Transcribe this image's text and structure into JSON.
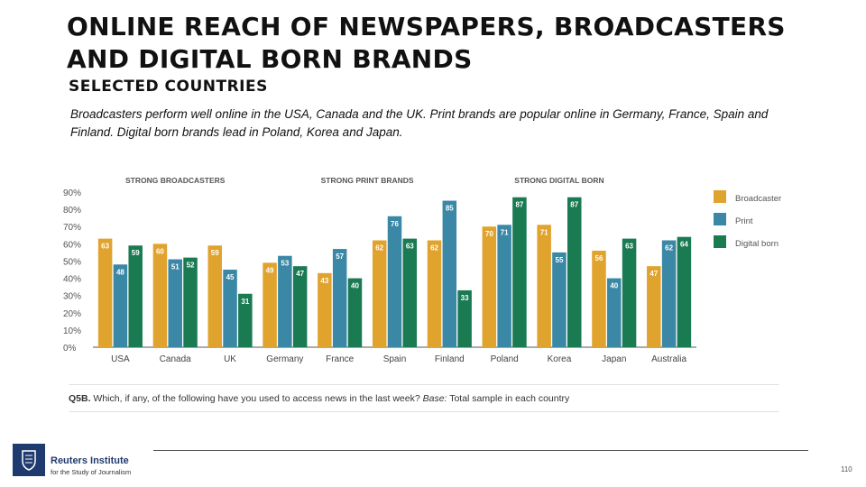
{
  "slide": {
    "title": "ONLINE REACH OF NEWSPAPERS, BROADCASTERS AND DIGITAL BORN BRANDS",
    "subtitle": "SELECTED COUNTRIES",
    "description": "Broadcasters perform well online in the USA, Canada and the UK. Print brands are popular online in Germany, France, Spain and Finland. Digital born brands lead in Poland, Korea and Japan.",
    "question_code": "Q5B.",
    "question_text": " Which, if any, of the following have you used to access news in the last week? ",
    "base_label": "Base:",
    "base_text": " Total sample in each country",
    "logo_name": "Reuters Institute",
    "logo_sub": "for the Study of Journalism",
    "page_number": "110"
  },
  "chart_data": {
    "type": "bar",
    "categories": [
      "USA",
      "Canada",
      "UK",
      "Germany",
      "France",
      "Spain",
      "Finland",
      "Poland",
      "Korea",
      "Japan",
      "Australia"
    ],
    "series": [
      {
        "name": "Broadcaster",
        "color": "#e0a32e",
        "values": [
          63,
          60,
          59,
          49,
          43,
          62,
          62,
          70,
          71,
          56,
          47
        ]
      },
      {
        "name": "Print",
        "color": "#3a87a6",
        "values": [
          48,
          51,
          45,
          53,
          57,
          76,
          85,
          71,
          55,
          40,
          62
        ]
      },
      {
        "name": "Digital born",
        "color": "#1a7a52",
        "values": [
          59,
          52,
          31,
          47,
          40,
          63,
          33,
          87,
          87,
          63,
          64
        ]
      }
    ],
    "y_ticks": [
      "0%",
      "10%",
      "20%",
      "30%",
      "40%",
      "50%",
      "60%",
      "70%",
      "80%",
      "90%"
    ],
    "ylim": [
      0,
      90
    ],
    "group_labels": [
      "STRONG BROADCASTERS",
      "STRONG PRINT BRANDS",
      "STRONG DIGITAL BORN"
    ],
    "legend_position": "right",
    "grid": false
  }
}
